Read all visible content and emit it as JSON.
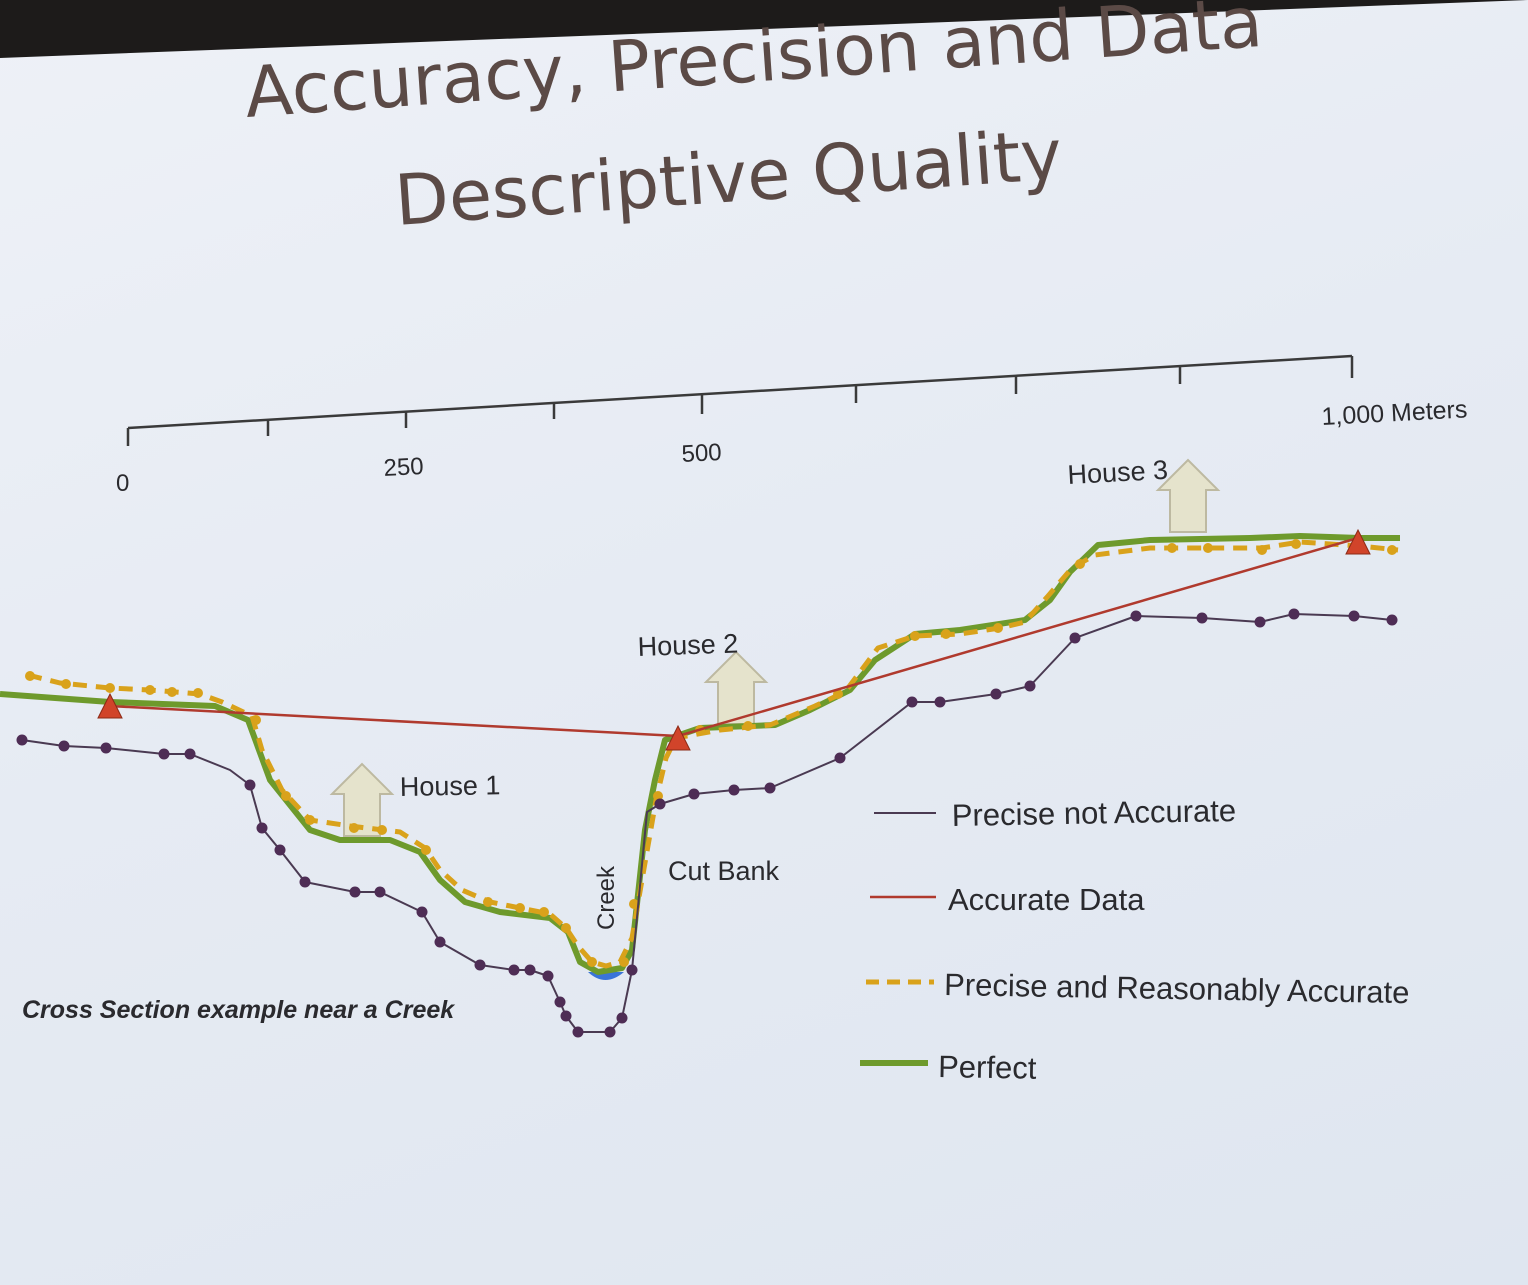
{
  "slide": {
    "title_line_1": "Accuracy, Precision and Data",
    "title_line_2": "Descriptive Quality"
  },
  "scale_bar": {
    "tick_labels": [
      "0",
      "250",
      "500",
      "1,000 Meters"
    ]
  },
  "annotations": {
    "house_1": "House 1",
    "house_2": "House 2",
    "house_3": "House 3",
    "creek": "Creek",
    "cut_bank": "Cut Bank",
    "caption": "Cross Section example near a Creek"
  },
  "legend": [
    {
      "label": "Precise not Accurate",
      "color": "#4a3a52",
      "style": "solid-thin"
    },
    {
      "label": "Accurate Data",
      "color": "#b03a2e",
      "style": "solid-thin"
    },
    {
      "label": "Precise and Reasonably Accurate",
      "color": "#d9a21b",
      "style": "dashed"
    },
    {
      "label": "Perfect",
      "color": "#6e9a2c",
      "style": "solid-thick"
    }
  ],
  "colors": {
    "title": "#5b4a46",
    "house_arrow_fill": "#e5e3cc",
    "survey_marker": "#d1442a",
    "creek_water": "#3a74d8",
    "precise_dots": "#4e2d55"
  }
}
